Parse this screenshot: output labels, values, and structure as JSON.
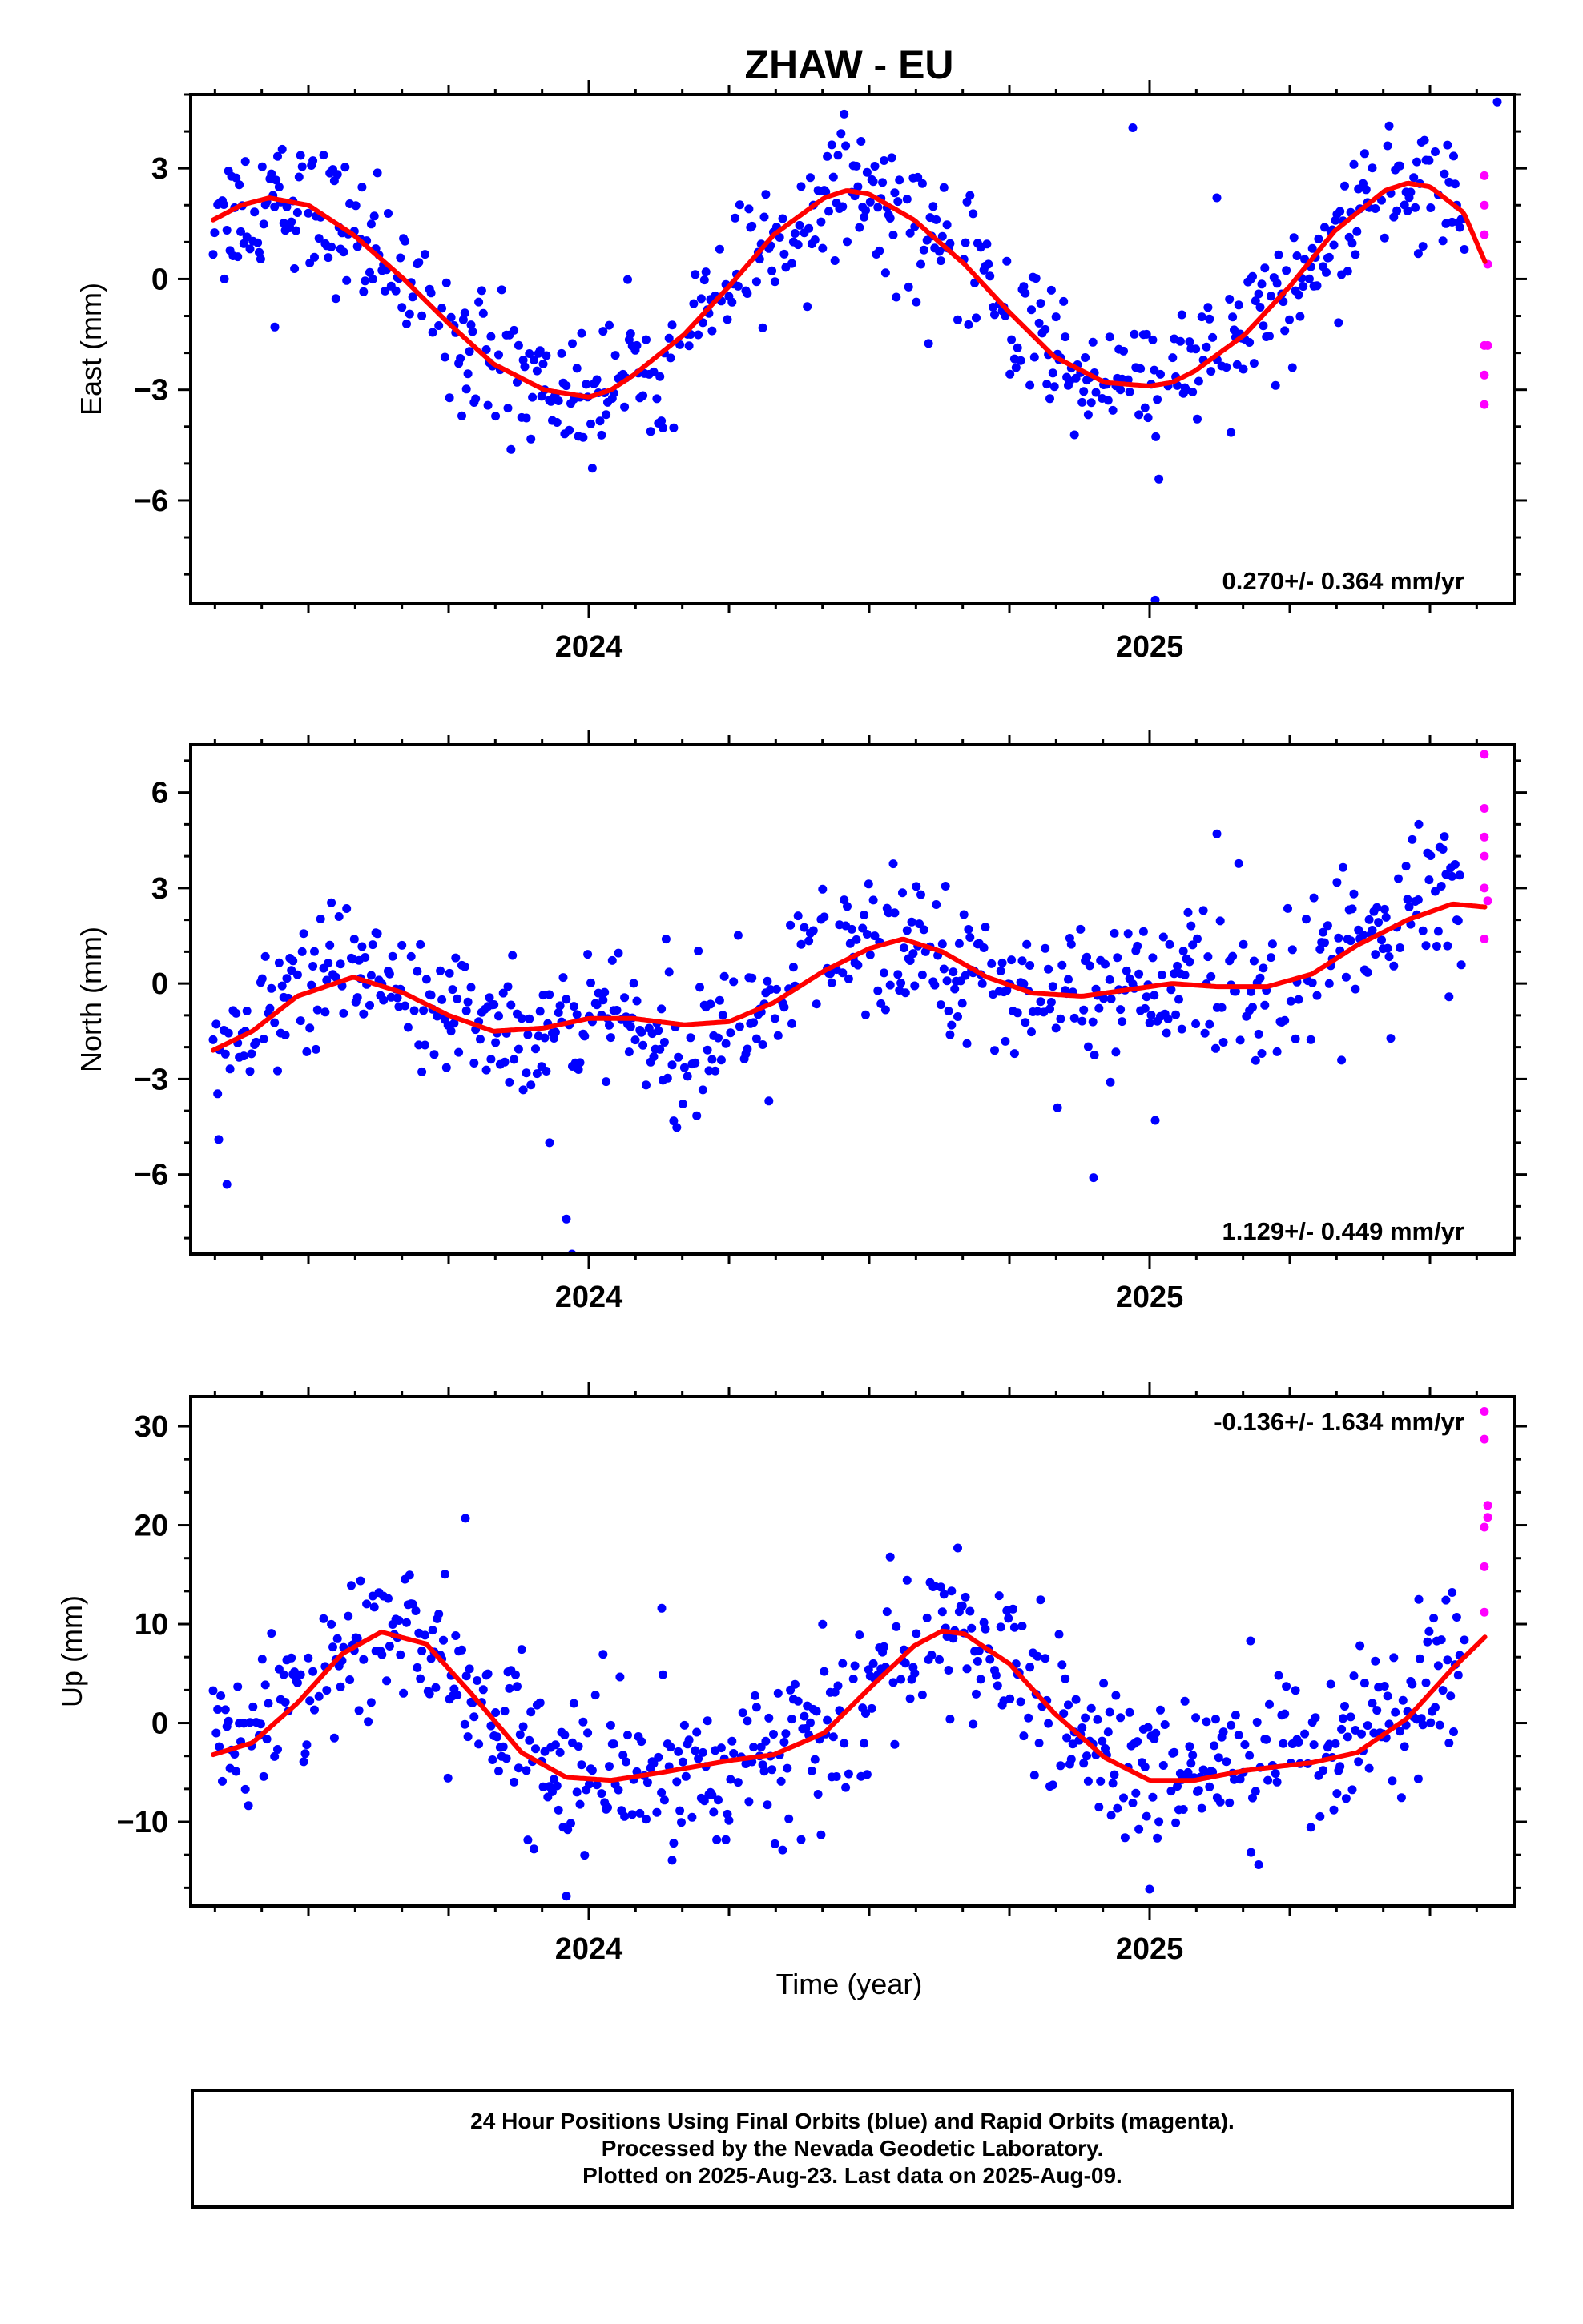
{
  "title": "ZHAW - EU",
  "xlabel": "Time (year)",
  "footer": {
    "line1": "24 Hour Positions Using Final Orbits (blue) and Rapid Orbits (magenta).",
    "line2": "Processed by the Nevada Geodetic Laboratory.",
    "line3": "Plotted on 2025-Aug-23. Last data on 2025-Aug-09."
  },
  "colors": {
    "final": "#0000ff",
    "rapid": "#ff00ff",
    "fit": "#ff0000",
    "axis": "#000000"
  },
  "chart_data": [
    {
      "type": "scatter",
      "name": "east",
      "ylabel": "East (mm)",
      "rate_label": "0.270+/- 0.364 mm/yr",
      "rate_position": "bottom-right",
      "xlim": [
        2023.29,
        2025.65
      ],
      "ylim": [
        -8.8,
        5.0
      ],
      "xticks": [
        2024,
        2025
      ],
      "xtick_labels": [
        "2024",
        "2025"
      ],
      "yticks": [
        3,
        0,
        -3,
        -6
      ],
      "ytick_labels": [
        "3",
        "0",
        "−3",
        "−6"
      ],
      "fit_curve": [
        [
          2023.33,
          1.6
        ],
        [
          2023.38,
          2.0
        ],
        [
          2023.43,
          2.2
        ],
        [
          2023.5,
          2.0
        ],
        [
          2023.58,
          1.2
        ],
        [
          2023.67,
          0.0
        ],
        [
          2023.75,
          -1.2
        ],
        [
          2023.83,
          -2.3
        ],
        [
          2023.92,
          -3.0
        ],
        [
          2024.0,
          -3.2
        ],
        [
          2024.04,
          -3.0
        ],
        [
          2024.08,
          -2.6
        ],
        [
          2024.17,
          -1.5
        ],
        [
          2024.25,
          -0.2
        ],
        [
          2024.33,
          1.2
        ],
        [
          2024.42,
          2.2
        ],
        [
          2024.46,
          2.4
        ],
        [
          2024.5,
          2.3
        ],
        [
          2024.58,
          1.6
        ],
        [
          2024.67,
          0.4
        ],
        [
          2024.75,
          -0.9
        ],
        [
          2024.83,
          -2.1
        ],
        [
          2024.92,
          -2.8
        ],
        [
          2025.0,
          -2.9
        ],
        [
          2025.04,
          -2.8
        ],
        [
          2025.08,
          -2.5
        ],
        [
          2025.17,
          -1.5
        ],
        [
          2025.25,
          -0.2
        ],
        [
          2025.33,
          1.3
        ],
        [
          2025.42,
          2.4
        ],
        [
          2025.46,
          2.6
        ],
        [
          2025.5,
          2.5
        ],
        [
          2025.56,
          1.8
        ],
        [
          2025.6,
          0.4
        ]
      ],
      "final_points_model": {
        "start": 2023.33,
        "end": 2025.56,
        "spacing_days": 1,
        "scatter_mm": 0.9
      },
      "rapid_points": [
        [
          2025.597,
          2.8
        ],
        [
          2025.597,
          2.0
        ],
        [
          2025.597,
          1.2
        ],
        [
          2025.603,
          0.4
        ],
        [
          2025.597,
          -1.8
        ],
        [
          2025.603,
          -1.8
        ],
        [
          2025.597,
          -2.6
        ],
        [
          2025.597,
          -3.4
        ]
      ],
      "outliers": [
        [
          2023.35,
          0.0
        ],
        [
          2023.44,
          -1.3
        ],
        [
          2024.97,
          4.1
        ],
        [
          2025.01,
          -8.7
        ],
        [
          2025.12,
          2.2
        ],
        [
          2025.62,
          4.8
        ]
      ]
    },
    {
      "type": "scatter",
      "name": "north",
      "ylabel": "North (mm)",
      "rate_label": "1.129+/- 0.449 mm/yr",
      "rate_position": "bottom-right",
      "xlim": [
        2023.29,
        2025.65
      ],
      "ylim": [
        -8.5,
        7.5
      ],
      "xticks": [
        2024,
        2025
      ],
      "xtick_labels": [
        "2024",
        "2025"
      ],
      "yticks": [
        6,
        3,
        0,
        -3,
        -6
      ],
      "ytick_labels": [
        "6",
        "3",
        "0",
        "−3",
        "−6"
      ],
      "fit_curve": [
        [
          2023.33,
          -2.1
        ],
        [
          2023.4,
          -1.5
        ],
        [
          2023.48,
          -0.4
        ],
        [
          2023.58,
          0.2
        ],
        [
          2023.67,
          -0.3
        ],
        [
          2023.75,
          -1.0
        ],
        [
          2023.83,
          -1.5
        ],
        [
          2023.92,
          -1.4
        ],
        [
          2024.0,
          -1.1
        ],
        [
          2024.08,
          -1.1
        ],
        [
          2024.17,
          -1.3
        ],
        [
          2024.25,
          -1.2
        ],
        [
          2024.33,
          -0.6
        ],
        [
          2024.42,
          0.4
        ],
        [
          2024.5,
          1.1
        ],
        [
          2024.56,
          1.4
        ],
        [
          2024.63,
          1.0
        ],
        [
          2024.71,
          0.2
        ],
        [
          2024.79,
          -0.3
        ],
        [
          2024.88,
          -0.4
        ],
        [
          2024.96,
          -0.2
        ],
        [
          2025.04,
          0.0
        ],
        [
          2025.12,
          -0.1
        ],
        [
          2025.21,
          -0.1
        ],
        [
          2025.29,
          0.3
        ],
        [
          2025.37,
          1.2
        ],
        [
          2025.46,
          2.0
        ],
        [
          2025.54,
          2.5
        ],
        [
          2025.6,
          2.4
        ]
      ],
      "final_points_model": {
        "start": 2023.33,
        "end": 2025.56,
        "spacing_days": 1,
        "scatter_mm": 1.1
      },
      "rapid_points": [
        [
          2025.597,
          7.2
        ],
        [
          2025.597,
          5.5
        ],
        [
          2025.597,
          4.6
        ],
        [
          2025.597,
          4.0
        ],
        [
          2025.597,
          3.0
        ],
        [
          2025.603,
          2.6
        ],
        [
          2025.597,
          1.4
        ]
      ],
      "outliers": [
        [
          2023.34,
          -4.9
        ],
        [
          2023.96,
          -7.4
        ],
        [
          2023.97,
          -8.5
        ],
        [
          2023.93,
          -5.0
        ],
        [
          2024.9,
          -6.1
        ],
        [
          2024.93,
          -3.1
        ],
        [
          2025.01,
          -4.3
        ],
        [
          2025.12,
          4.7
        ],
        [
          2025.48,
          5.0
        ]
      ]
    },
    {
      "type": "scatter",
      "name": "up",
      "ylabel": "Up (mm)",
      "rate_label": "-0.136+/- 1.634 mm/yr",
      "rate_position": "top-right",
      "xlim": [
        2023.29,
        2025.65
      ],
      "ylim": [
        -18.5,
        33.0
      ],
      "xticks": [
        2024,
        2025
      ],
      "xtick_labels": [
        "2024",
        "2025"
      ],
      "yticks": [
        30,
        20,
        10,
        0,
        -10
      ],
      "ytick_labels": [
        "30",
        "20",
        "10",
        "0",
        "−10"
      ],
      "fit_curve": [
        [
          2023.33,
          -3.2
        ],
        [
          2023.4,
          -2.0
        ],
        [
          2023.48,
          2.0
        ],
        [
          2023.56,
          7.0
        ],
        [
          2023.63,
          9.2
        ],
        [
          2023.71,
          8.0
        ],
        [
          2023.79,
          3.0
        ],
        [
          2023.88,
          -3.0
        ],
        [
          2023.96,
          -5.5
        ],
        [
          2024.04,
          -5.8
        ],
        [
          2024.13,
          -5.0
        ],
        [
          2024.25,
          -3.8
        ],
        [
          2024.33,
          -3.2
        ],
        [
          2024.42,
          -1.0
        ],
        [
          2024.5,
          3.5
        ],
        [
          2024.58,
          7.8
        ],
        [
          2024.63,
          9.3
        ],
        [
          2024.67,
          9.0
        ],
        [
          2024.75,
          6.0
        ],
        [
          2024.83,
          1.0
        ],
        [
          2024.92,
          -3.5
        ],
        [
          2025.0,
          -5.8
        ],
        [
          2025.08,
          -5.8
        ],
        [
          2025.17,
          -4.8
        ],
        [
          2025.29,
          -4.0
        ],
        [
          2025.37,
          -3.0
        ],
        [
          2025.46,
          0.5
        ],
        [
          2025.54,
          5.5
        ],
        [
          2025.6,
          8.8
        ]
      ],
      "final_points_model": {
        "start": 2023.33,
        "end": 2025.56,
        "spacing_days": 1,
        "scatter_mm": 3.8
      },
      "rapid_points": [
        [
          2025.597,
          31.5
        ],
        [
          2025.597,
          28.7
        ],
        [
          2025.603,
          22.0
        ],
        [
          2025.603,
          20.8
        ],
        [
          2025.597,
          19.8
        ],
        [
          2025.597,
          15.8
        ],
        [
          2025.597,
          11.2
        ]
      ],
      "outliers": [
        [
          2023.78,
          20.7
        ],
        [
          2023.96,
          -17.5
        ],
        [
          2024.13,
          11.6
        ],
        [
          2025.0,
          -16.8
        ],
        [
          2025.18,
          8.3
        ],
        [
          2025.48,
          12.5
        ]
      ]
    }
  ]
}
